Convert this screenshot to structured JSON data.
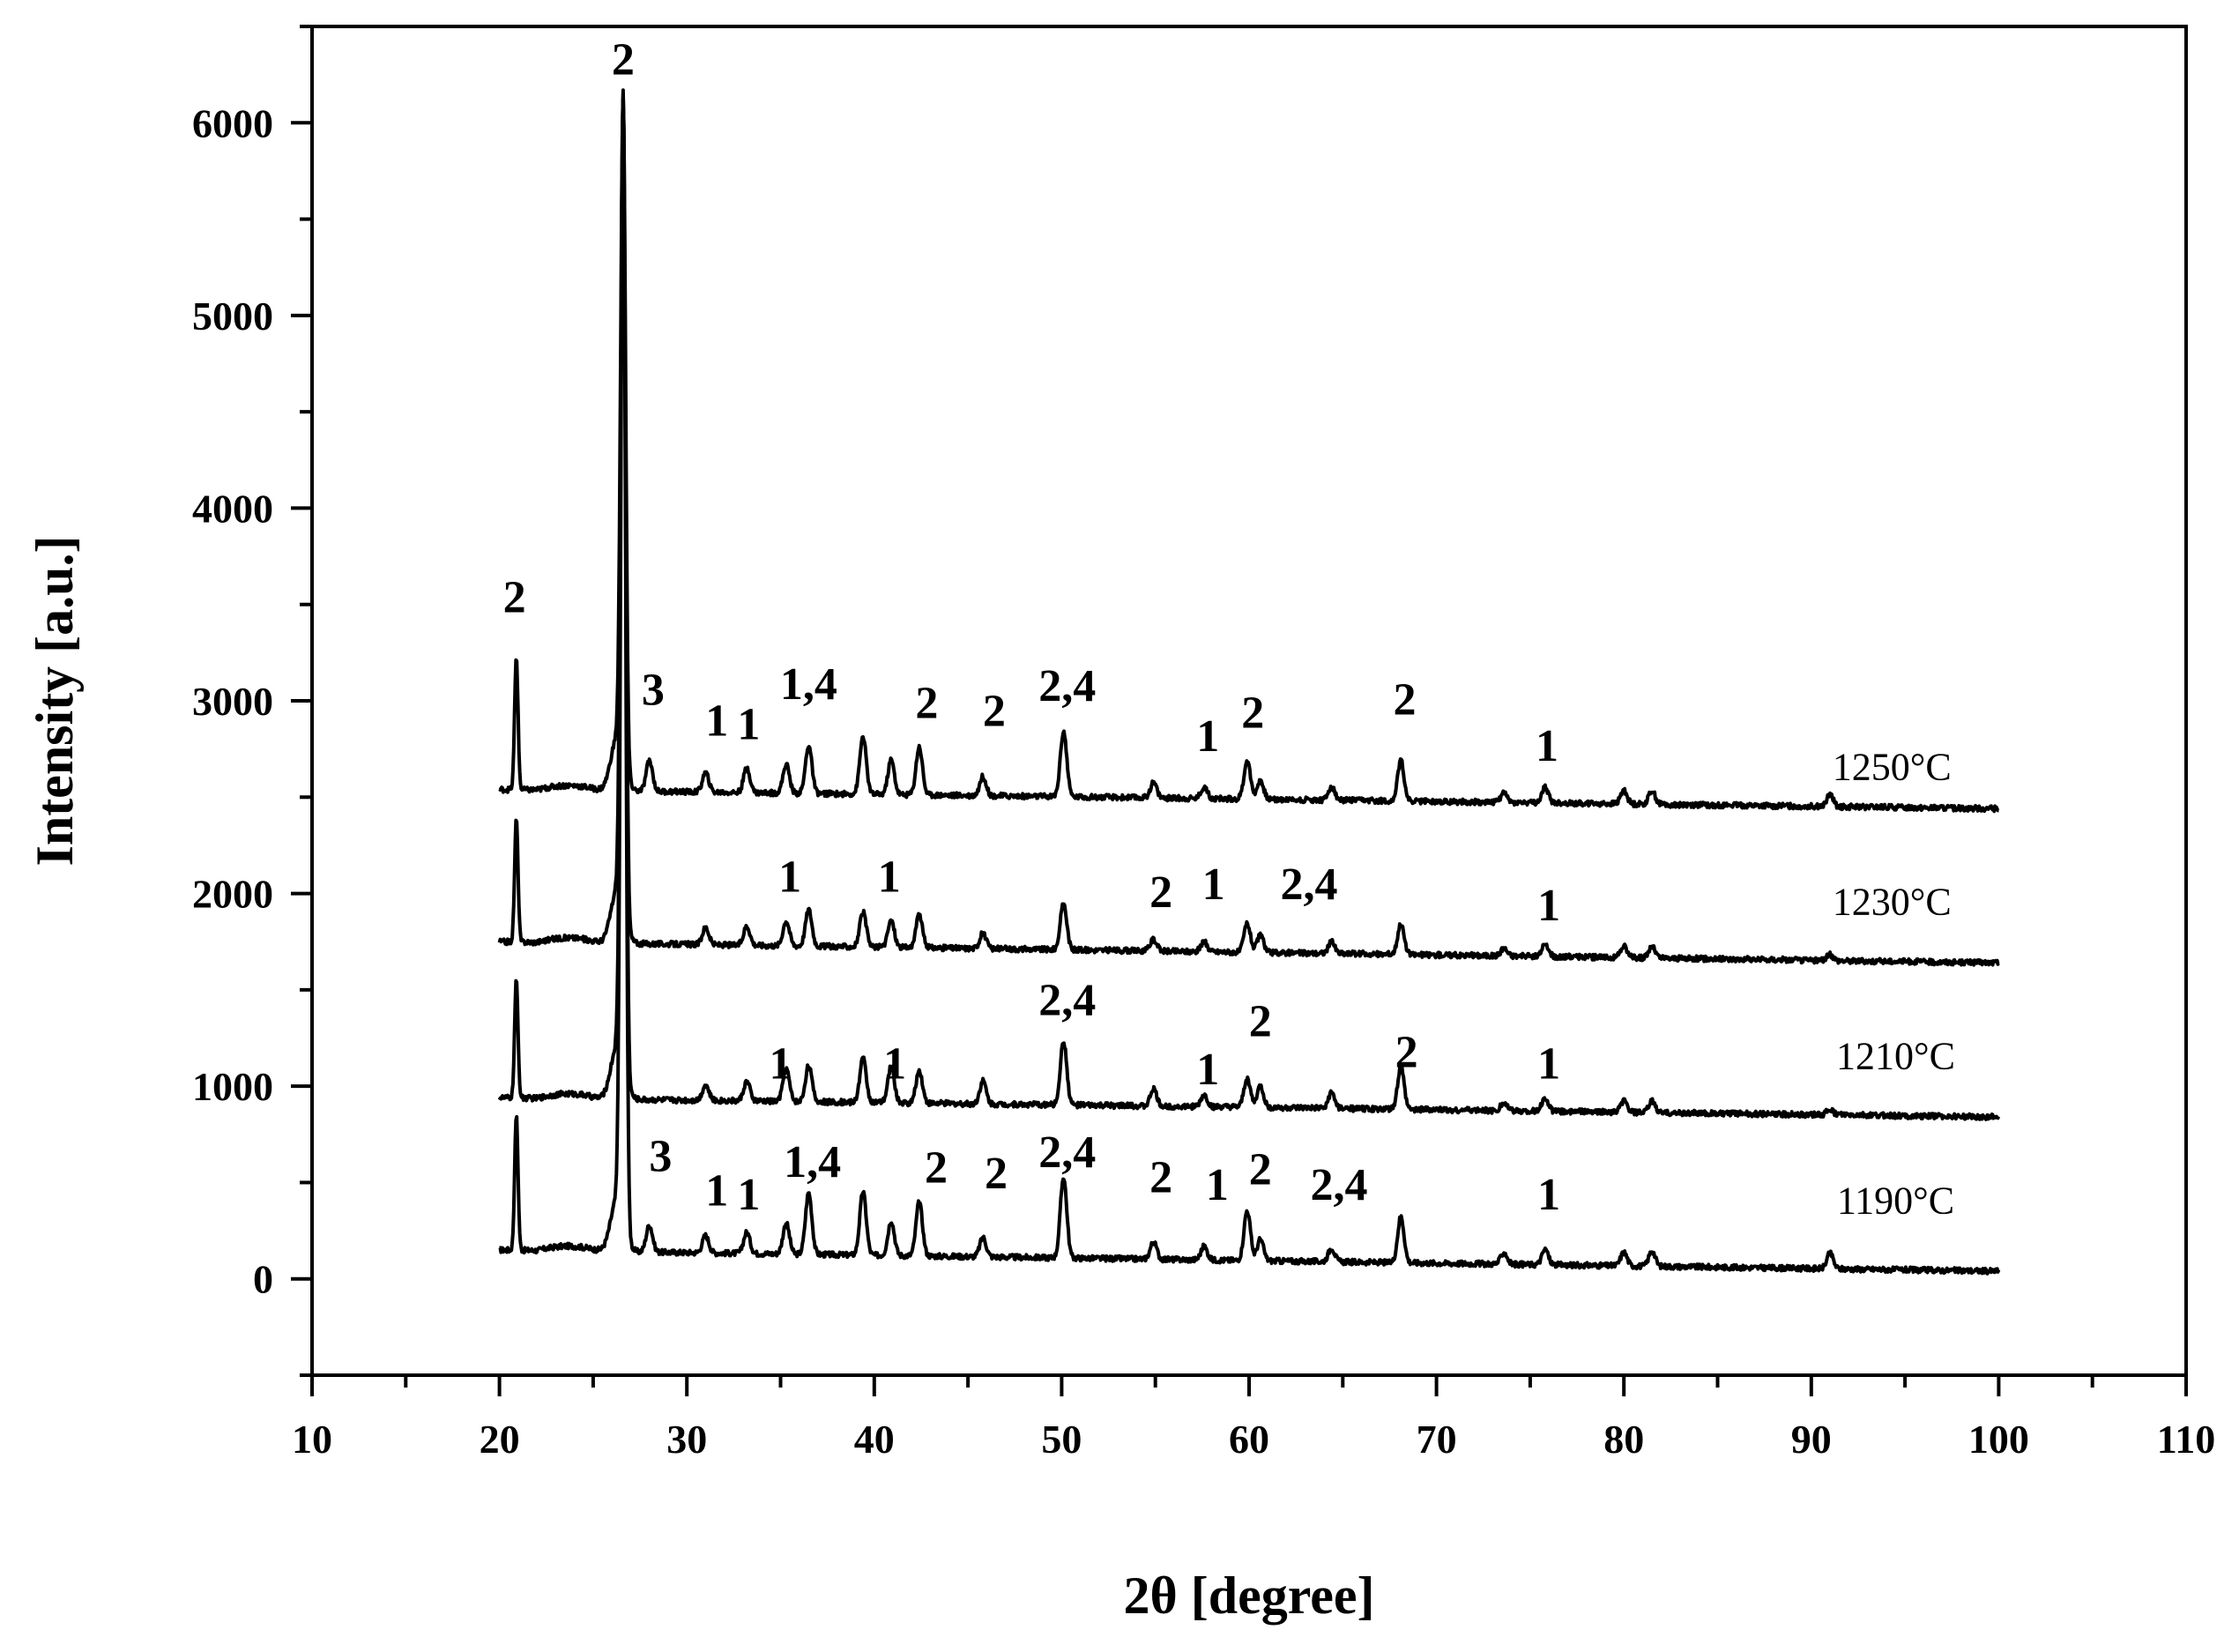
{
  "chart_data": {
    "type": "line",
    "xlabel": "2θ [degree]",
    "ylabel": "Intensity [a.u.]",
    "xlim": [
      10,
      110
    ],
    "ylim": [
      -500,
      6500
    ],
    "xticks": [
      10,
      20,
      30,
      40,
      50,
      60,
      70,
      80,
      90,
      100,
      110
    ],
    "yticks": [
      0,
      1000,
      2000,
      3000,
      4000,
      5000,
      6000
    ],
    "grid": false,
    "peak_positions": [
      20.9,
      26.6,
      28.0,
      31.0,
      33.2,
      35.3,
      36.5,
      39.4,
      40.9,
      42.4,
      45.8,
      50.1,
      54.9,
      57.6,
      59.9,
      60.6,
      64.4,
      68.1,
      73.6,
      75.8,
      80.0,
      81.5,
      91.0
    ],
    "series": [
      {
        "name": "1190°C",
        "baseline_start": 150,
        "baseline_end": 40,
        "peak_heights": [
          700,
          5780,
          140,
          90,
          110,
          160,
          320,
          330,
          180,
          280,
          100,
          420,
          90,
          70,
          260,
          110,
          70,
          240,
          60,
          80,
          70,
          80,
          80
        ]
      },
      {
        "name": "1210°C",
        "baseline_start": 940,
        "baseline_end": 840,
        "peak_heights": [
          610,
          5000,
          0,
          80,
          100,
          170,
          190,
          230,
          190,
          170,
          120,
          330,
          90,
          60,
          150,
          110,
          80,
          220,
          40,
          70,
          60,
          60,
          30
        ]
      },
      {
        "name": "1230°C",
        "baseline_start": 1750,
        "baseline_end": 1640,
        "peak_heights": [
          640,
          4230,
          0,
          90,
          100,
          130,
          190,
          180,
          140,
          170,
          80,
          240,
          60,
          50,
          150,
          90,
          60,
          160,
          40,
          60,
          60,
          60,
          30
        ]
      },
      {
        "name": "1250°C",
        "baseline_start": 2540,
        "baseline_end": 2440,
        "peak_heights": [
          690,
          3420,
          160,
          100,
          130,
          150,
          250,
          300,
          180,
          250,
          100,
          340,
          80,
          60,
          200,
          100,
          70,
          210,
          50,
          80,
          70,
          70,
          60
        ]
      }
    ],
    "annotations": [
      {
        "text": "2",
        "x": 26.6,
        "y": 6250
      },
      {
        "text": "2",
        "x": 20.8,
        "y": 3460
      },
      {
        "text": "3",
        "x": 28.2,
        "y": 2980
      },
      {
        "text": "1",
        "x": 31.6,
        "y": 2820
      },
      {
        "text": "1",
        "x": 33.3,
        "y": 2800
      },
      {
        "text": "1,4",
        "x": 36.5,
        "y": 3010
      },
      {
        "text": "2",
        "x": 42.8,
        "y": 2910
      },
      {
        "text": "2",
        "x": 46.4,
        "y": 2870
      },
      {
        "text": "2,4",
        "x": 50.3,
        "y": 3000
      },
      {
        "text": "1",
        "x": 57.8,
        "y": 2740
      },
      {
        "text": "2",
        "x": 60.2,
        "y": 2860
      },
      {
        "text": "2",
        "x": 68.3,
        "y": 2930
      },
      {
        "text": "1",
        "x": 75.9,
        "y": 2690
      },
      {
        "text": "1",
        "x": 35.5,
        "y": 2010
      },
      {
        "text": "1",
        "x": 40.8,
        "y": 2010
      },
      {
        "text": "2",
        "x": 55.3,
        "y": 1930
      },
      {
        "text": "1",
        "x": 58.1,
        "y": 1970
      },
      {
        "text": "2,4",
        "x": 63.2,
        "y": 1970
      },
      {
        "text": "1",
        "x": 76.0,
        "y": 1860
      },
      {
        "text": "1",
        "x": 35.0,
        "y": 1040
      },
      {
        "text": "1",
        "x": 41.1,
        "y": 1040
      },
      {
        "text": "2,4",
        "x": 50.3,
        "y": 1370
      },
      {
        "text": "1",
        "x": 57.8,
        "y": 1010
      },
      {
        "text": "2",
        "x": 60.6,
        "y": 1260
      },
      {
        "text": "2",
        "x": 68.4,
        "y": 1100
      },
      {
        "text": "1",
        "x": 76.0,
        "y": 1040
      },
      {
        "text": "3",
        "x": 28.6,
        "y": 560
      },
      {
        "text": "1",
        "x": 31.6,
        "y": 380
      },
      {
        "text": "1",
        "x": 33.3,
        "y": 360
      },
      {
        "text": "1,4",
        "x": 36.7,
        "y": 530
      },
      {
        "text": "2",
        "x": 43.3,
        "y": 500
      },
      {
        "text": "2",
        "x": 46.5,
        "y": 470
      },
      {
        "text": "2,4",
        "x": 50.3,
        "y": 580
      },
      {
        "text": "2",
        "x": 55.3,
        "y": 450
      },
      {
        "text": "1",
        "x": 58.3,
        "y": 410
      },
      {
        "text": "2",
        "x": 60.6,
        "y": 490
      },
      {
        "text": "2,4",
        "x": 64.8,
        "y": 410
      },
      {
        "text": "1",
        "x": 76.0,
        "y": 360
      }
    ],
    "series_labels": [
      {
        "text": "1190°C",
        "x": 94.5,
        "y": 340
      },
      {
        "text": "1210°C",
        "x": 94.5,
        "y": 1090
      },
      {
        "text": "1230°C",
        "x": 94.3,
        "y": 1890
      },
      {
        "text": "1250°C",
        "x": 94.3,
        "y": 2590
      }
    ]
  }
}
